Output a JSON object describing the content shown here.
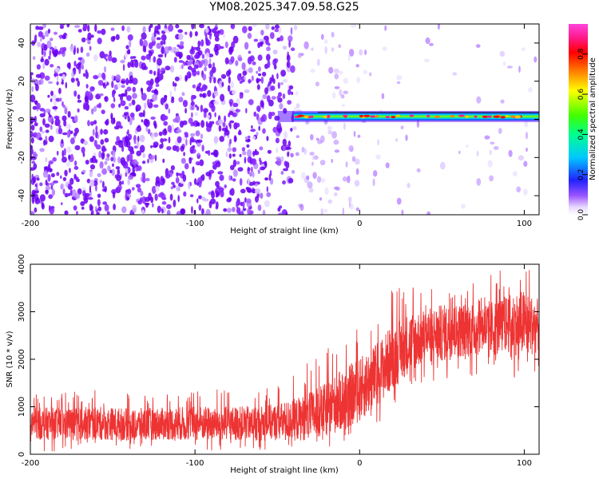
{
  "figure": {
    "title": "YM08.2025.347.09.58.G25"
  },
  "chart_data": [
    {
      "type": "heatmap",
      "title": "YM08.2025.347.09.58.G25",
      "xlabel": "Height of straight line (km)",
      "ylabel": "Frequency (Hz)",
      "xlim": [
        -200,
        109
      ],
      "ylim": [
        -50,
        50
      ],
      "xticks": [
        -200,
        -100,
        0,
        100
      ],
      "yticks": [
        -40,
        -20,
        0,
        20,
        40
      ],
      "grid": false,
      "colorbar": {
        "label": "Normalized spectral amplitude",
        "range": [
          0,
          0.95
        ],
        "ticks": [
          0.0,
          0.2,
          0.4,
          0.6,
          0.8
        ],
        "tick_labels": [
          "0.0",
          "0.2",
          "0.4",
          "0.6",
          "0.8"
        ],
        "colormap": [
          "#ffffff",
          "#d9c4ff",
          "#7a1cff",
          "#2020ff",
          "#00c8ff",
          "#00ff80",
          "#40ff00",
          "#ffff00",
          "#ff8000",
          "#ff0000",
          "#ff1a8c",
          "#ff33cc"
        ]
      },
      "features": {
        "noise_region_x": [
          -200,
          -40
        ],
        "signal_band_center_hz": 1.5,
        "signal_band_start_km": -40,
        "signal_band_end_km": 109
      }
    },
    {
      "type": "line",
      "title": "",
      "xlabel": "Height of straight line (km)",
      "ylabel": "SNR (10 * v/v)",
      "xlim": [
        -200,
        109
      ],
      "ylim": [
        0,
        4000
      ],
      "xticks": [
        -200,
        -100,
        0,
        100
      ],
      "yticks": [
        0,
        1000,
        2000,
        3000,
        4000
      ],
      "grid": false,
      "series": [
        {
          "name": "SNR",
          "color": "#ee3333",
          "x": [
            -200,
            -180,
            -160,
            -140,
            -120,
            -100,
            -80,
            -60,
            -50,
            -40,
            -30,
            -20,
            -10,
            0,
            10,
            20,
            30,
            40,
            50,
            60,
            70,
            80,
            90,
            100,
            109
          ],
          "mean": [
            650,
            640,
            650,
            630,
            640,
            650,
            650,
            660,
            680,
            720,
            800,
            950,
            1150,
            1350,
            1650,
            2050,
            2350,
            2500,
            2550,
            2600,
            2650,
            2650,
            2750,
            2750,
            2700
          ],
          "max": [
            1300,
            1300,
            1350,
            1300,
            1300,
            1400,
            1350,
            1400,
            1500,
            1700,
            2000,
            2200,
            2600,
            2850,
            3100,
            3500,
            3550,
            3550,
            3700,
            3700,
            3600,
            3800,
            3950,
            4000,
            3700
          ],
          "min": [
            60,
            60,
            60,
            60,
            60,
            60,
            60,
            80,
            100,
            100,
            150,
            150,
            200,
            400,
            600,
            1000,
            1200,
            1500,
            1500,
            1600,
            1500,
            1650,
            1700,
            1400,
            1700
          ]
        }
      ]
    }
  ]
}
